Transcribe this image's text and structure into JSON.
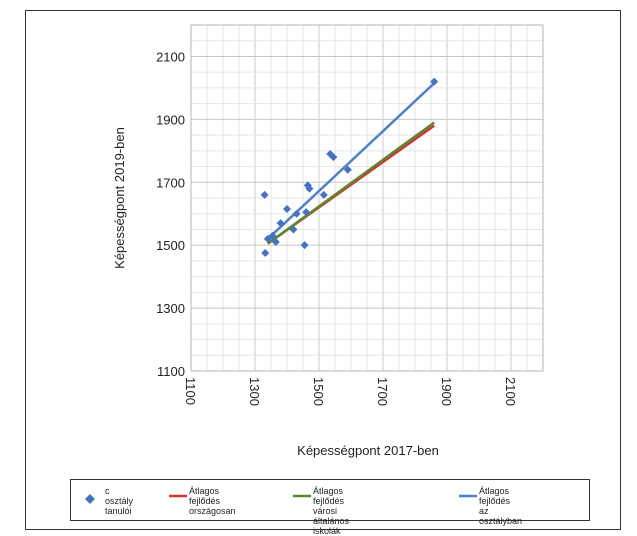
{
  "chart_data": {
    "type": "scatter",
    "xlabel": "Képességpont 2017-ben",
    "ylabel": "Képességpont 2019-ben",
    "xlim": [
      1100,
      2200
    ],
    "ylim": [
      1100,
      2200
    ],
    "x_ticks": [
      "1100",
      "1300",
      "1500",
      "1700",
      "1900",
      "2100"
    ],
    "y_ticks": [
      "1100",
      "1300",
      "1500",
      "1700",
      "1900",
      "2100"
    ],
    "grid": true,
    "legend_position": "bottom",
    "series": [
      {
        "name": "c osztály\ntanulói",
        "kind": "points",
        "color": "#4472c4",
        "x": [
          1330,
          1332,
          1340,
          1355,
          1365,
          1380,
          1400,
          1420,
          1430,
          1455,
          1460,
          1465,
          1470,
          1515,
          1535,
          1545,
          1590,
          1860
        ],
        "y": [
          1660,
          1475,
          1520,
          1530,
          1510,
          1570,
          1615,
          1550,
          1600,
          1500,
          1605,
          1690,
          1680,
          1660,
          1790,
          1780,
          1740,
          2020
        ]
      },
      {
        "name": "Átlagos fejlődés\nországosan",
        "kind": "line",
        "color": "#d93030",
        "x": [
          1340,
          1860
        ],
        "y": [
          1505,
          1880
        ]
      },
      {
        "name": "Átlagos fejlődés\nvárosi általános iskolák",
        "kind": "line",
        "color": "#5a8a2e",
        "x": [
          1340,
          1860
        ],
        "y": [
          1505,
          1890
        ]
      },
      {
        "name": "Átlagos fejlődés\naz osztályban",
        "kind": "line",
        "color": "#4f7fcf",
        "x": [
          1335,
          1860
        ],
        "y": [
          1515,
          2015
        ]
      }
    ]
  }
}
